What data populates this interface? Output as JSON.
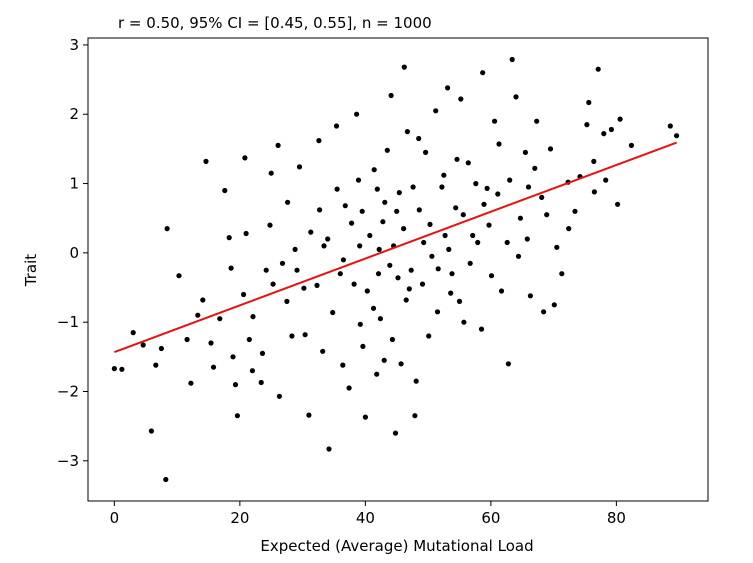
{
  "chart_data": {
    "type": "scatter",
    "title": "r = 0.50, 95% CI = [0.45, 0.55], n = 1000",
    "xlabel": "Expected (Average) Mutational Load",
    "ylabel": "Trait",
    "xlim": [
      -4.2,
      94.6
    ],
    "ylim": [
      -3.58,
      3.1
    ],
    "xticks": [
      0,
      20,
      40,
      60,
      80
    ],
    "yticks": [
      -3,
      -2,
      -1,
      0,
      1,
      2,
      3
    ],
    "xtick_labels": [
      "0",
      "20",
      "40",
      "60",
      "80"
    ],
    "ytick_labels": [
      "−3",
      "−2",
      "−1",
      "0",
      "1",
      "2",
      "3"
    ],
    "grid": false,
    "n": 1000,
    "point_color": "#000000",
    "points": [
      [
        0.0,
        -1.67
      ],
      [
        8.2,
        -3.27
      ],
      [
        5.9,
        -2.57
      ],
      [
        7.5,
        -1.38
      ],
      [
        3.0,
        -1.15
      ],
      [
        4.6,
        -1.33
      ],
      [
        8.4,
        0.35
      ],
      [
        10.3,
        -0.33
      ],
      [
        12.2,
        -1.88
      ],
      [
        14.1,
        -0.68
      ],
      [
        14.6,
        1.32
      ],
      [
        15.4,
        -1.3
      ],
      [
        17.6,
        0.9
      ],
      [
        18.3,
        0.22
      ],
      [
        18.9,
        -1.5
      ],
      [
        19.6,
        -2.35
      ],
      [
        21.0,
        0.28
      ],
      [
        20.8,
        1.37
      ],
      [
        22.1,
        -0.92
      ],
      [
        23.4,
        -1.87
      ],
      [
        24.2,
        -0.25
      ],
      [
        25.0,
        1.15
      ],
      [
        26.1,
        1.55
      ],
      [
        26.3,
        -2.07
      ],
      [
        27.6,
        0.73
      ],
      [
        28.3,
        -1.2
      ],
      [
        29.5,
        1.24
      ],
      [
        30.2,
        -0.51
      ],
      [
        31.0,
        -2.34
      ],
      [
        32.3,
        -0.47
      ],
      [
        32.6,
        1.62
      ],
      [
        33.4,
        0.1
      ],
      [
        34.2,
        -2.83
      ],
      [
        35.4,
        1.83
      ],
      [
        36.0,
        -0.3
      ],
      [
        36.4,
        -1.62
      ],
      [
        37.8,
        0.43
      ],
      [
        38.6,
        2.0
      ],
      [
        39.2,
        -1.03
      ],
      [
        40.0,
        -2.37
      ],
      [
        41.4,
        1.2
      ],
      [
        42.2,
        0.05
      ],
      [
        43.0,
        -1.55
      ],
      [
        44.1,
        2.27
      ],
      [
        44.8,
        -2.6
      ],
      [
        45.4,
        0.87
      ],
      [
        46.2,
        2.68
      ],
      [
        47.0,
        -0.52
      ],
      [
        47.9,
        -2.35
      ],
      [
        48.5,
        1.65
      ],
      [
        49.3,
        0.15
      ],
      [
        50.1,
        -1.2
      ],
      [
        51.2,
        2.05
      ],
      [
        51.6,
        -0.23
      ],
      [
        52.5,
        1.12
      ],
      [
        53.1,
        2.38
      ],
      [
        53.6,
        -0.58
      ],
      [
        54.4,
        0.65
      ],
      [
        55.2,
        2.22
      ],
      [
        55.7,
        -1.0
      ],
      [
        56.4,
        1.3
      ],
      [
        57.1,
        0.25
      ],
      [
        58.7,
        2.6
      ],
      [
        59.4,
        0.93
      ],
      [
        60.1,
        -0.33
      ],
      [
        61.3,
        1.57
      ],
      [
        62.6,
        0.15
      ],
      [
        62.8,
        -1.6
      ],
      [
        63.4,
        2.79
      ],
      [
        64.0,
        2.25
      ],
      [
        64.7,
        0.5
      ],
      [
        65.5,
        1.45
      ],
      [
        66.3,
        -0.62
      ],
      [
        67.3,
        1.9
      ],
      [
        68.1,
        0.8
      ],
      [
        68.4,
        -0.85
      ],
      [
        69.5,
        1.5
      ],
      [
        70.5,
        0.08
      ],
      [
        71.3,
        -0.3
      ],
      [
        72.3,
        1.02
      ],
      [
        73.4,
        0.6
      ],
      [
        74.2,
        1.1
      ],
      [
        75.3,
        1.85
      ],
      [
        75.6,
        2.17
      ],
      [
        76.5,
        0.88
      ],
      [
        77.1,
        2.65
      ],
      [
        78.0,
        1.72
      ],
      [
        78.3,
        1.05
      ],
      [
        79.2,
        1.78
      ],
      [
        80.6,
        1.93
      ],
      [
        80.2,
        0.7
      ],
      [
        82.4,
        1.55
      ],
      [
        88.6,
        1.83
      ],
      [
        89.6,
        1.69
      ],
      [
        76.4,
        1.32
      ],
      [
        72.4,
        0.35
      ],
      [
        70.1,
        -0.75
      ],
      [
        58.5,
        -1.1
      ],
      [
        48.1,
        -1.85
      ],
      [
        43.1,
        0.73
      ],
      [
        41.3,
        -0.8
      ],
      [
        39.5,
        0.6
      ],
      [
        45.2,
        -0.36
      ],
      [
        50.3,
        0.41
      ],
      [
        52.2,
        0.95
      ],
      [
        36.5,
        -0.1
      ],
      [
        38.2,
        -0.45
      ],
      [
        42.4,
        -0.95
      ],
      [
        44.5,
        0.1
      ],
      [
        46.5,
        -0.68
      ],
      [
        48.6,
        0.62
      ],
      [
        40.7,
        0.25
      ],
      [
        34.8,
        -0.86
      ],
      [
        32.7,
        0.62
      ],
      [
        30.4,
        -1.18
      ],
      [
        28.8,
        0.05
      ],
      [
        27.5,
        -0.7
      ],
      [
        25.3,
        -0.45
      ],
      [
        23.6,
        -1.45
      ],
      [
        22.0,
        -1.7
      ],
      [
        20.6,
        -0.6
      ],
      [
        18.6,
        -0.22
      ],
      [
        16.8,
        -0.95
      ],
      [
        54.6,
        1.35
      ],
      [
        56.7,
        -0.15
      ],
      [
        58.9,
        0.7
      ],
      [
        60.6,
        1.9
      ],
      [
        61.7,
        -0.55
      ],
      [
        63.0,
        1.05
      ],
      [
        65.8,
        0.2
      ],
      [
        67.0,
        1.22
      ],
      [
        53.8,
        -0.3
      ],
      [
        49.6,
        1.45
      ],
      [
        46.7,
        1.75
      ],
      [
        43.5,
        1.48
      ],
      [
        41.8,
        -1.75
      ],
      [
        39.6,
        -1.35
      ],
      [
        37.4,
        -1.95
      ],
      [
        35.5,
        0.92
      ],
      [
        33.2,
        -1.42
      ],
      [
        31.3,
        0.3
      ],
      [
        29.1,
        -0.25
      ],
      [
        47.6,
        0.95
      ],
      [
        44.3,
        -1.25
      ],
      [
        51.5,
        -0.85
      ],
      [
        42.8,
        0.45
      ],
      [
        38.9,
        1.05
      ],
      [
        40.3,
        -0.55
      ],
      [
        46.1,
        0.35
      ],
      [
        45.7,
        -1.6
      ],
      [
        49.1,
        -0.45
      ],
      [
        52.7,
        0.25
      ],
      [
        55.6,
        0.55
      ],
      [
        57.6,
        1.0
      ],
      [
        59.7,
        0.4
      ],
      [
        61.1,
        0.85
      ],
      [
        24.8,
        0.4
      ],
      [
        26.8,
        -0.15
      ],
      [
        21.5,
        -1.25
      ],
      [
        19.3,
        -1.9
      ],
      [
        15.8,
        -1.65
      ],
      [
        13.3,
        -0.9
      ],
      [
        11.6,
        -1.25
      ],
      [
        1.2,
        -1.68
      ],
      [
        6.6,
        -1.62
      ],
      [
        64.4,
        -0.05
      ],
      [
        66.0,
        0.95
      ],
      [
        68.9,
        0.55
      ],
      [
        34.0,
        0.2
      ],
      [
        36.8,
        0.68
      ],
      [
        39.1,
        0.1
      ],
      [
        41.9,
        0.92
      ],
      [
        43.9,
        -0.18
      ],
      [
        47.3,
        -0.25
      ],
      [
        50.6,
        -0.05
      ],
      [
        53.3,
        0.05
      ],
      [
        55.0,
        -0.7
      ],
      [
        57.9,
        0.15
      ],
      [
        45.0,
        0.6
      ],
      [
        42.1,
        -0.3
      ]
    ]
  }
}
